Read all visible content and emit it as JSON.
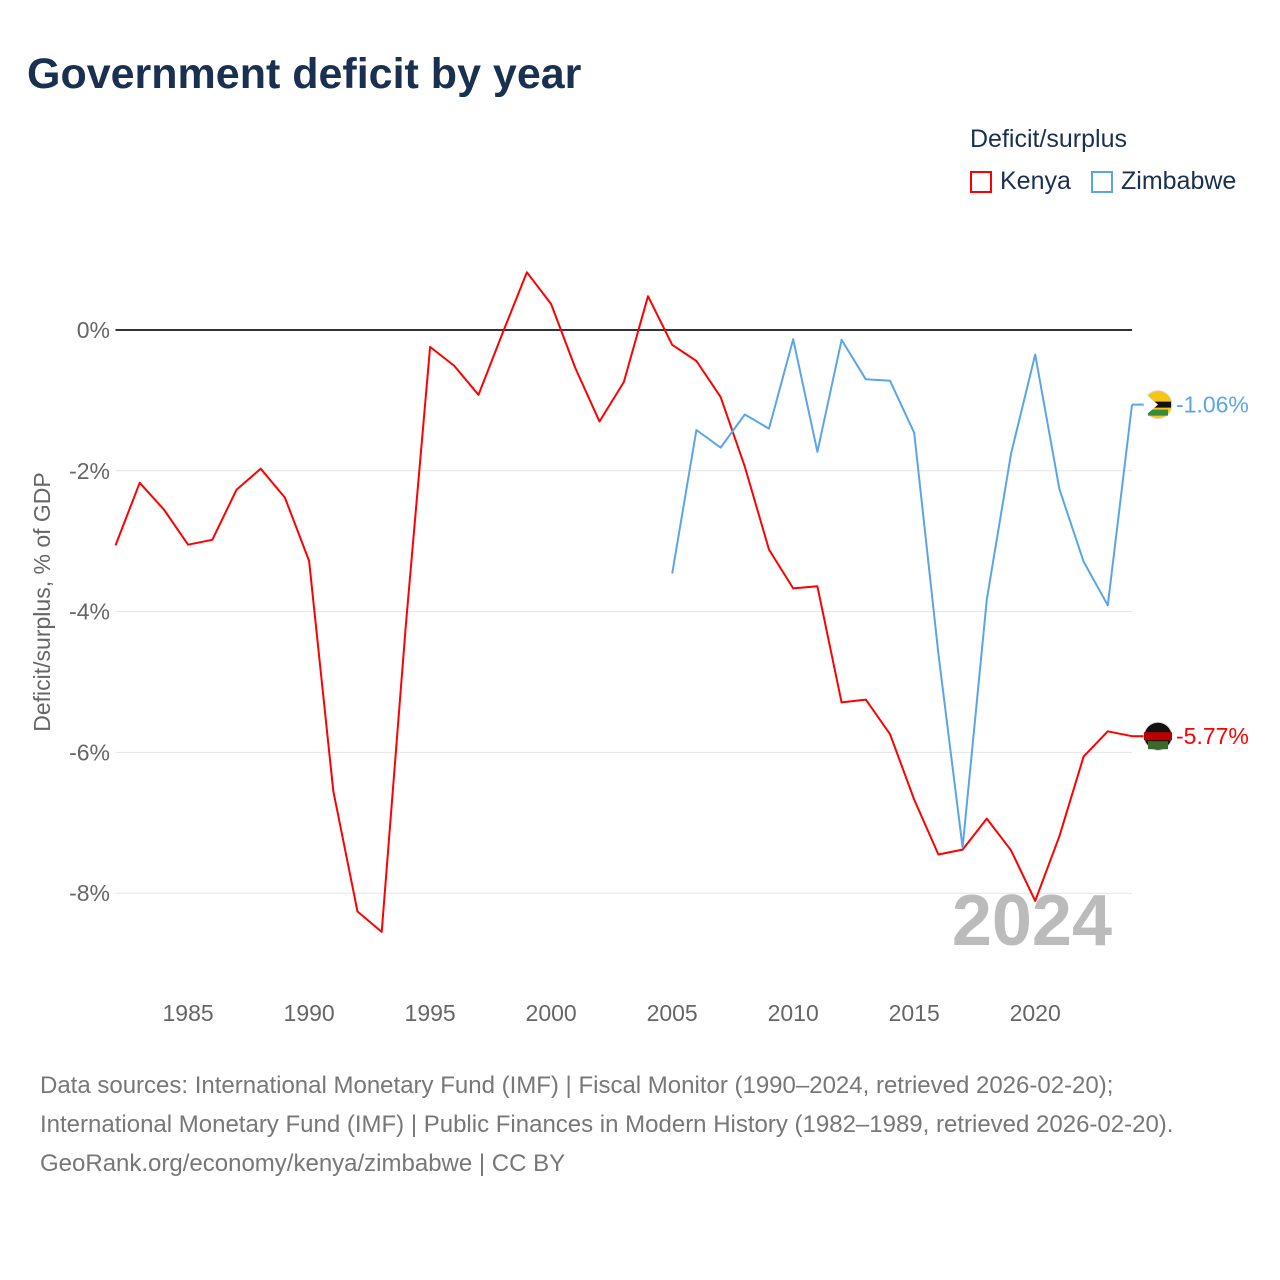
{
  "title": "Government deficit by year",
  "legend": {
    "title": "Deficit/surplus",
    "items": [
      {
        "name": "Kenya",
        "color": "#ff0000"
      },
      {
        "name": "Zimbabwe",
        "color": "#5aa5e8"
      }
    ]
  },
  "footer": {
    "sources": "Data sources: International Monetary Fund (IMF) | Fiscal Monitor (1990–2024, retrieved 2026-02-20); International Monetary Fund (IMF) | Public Finances in Modern History (1982–1989, retrieved 2026-02-20).",
    "credit": "GeoRank.org/economy/kenya/zimbabwe | CC BY"
  },
  "chart_data": {
    "type": "line",
    "title": "Government deficit by year",
    "ylabel": "Deficit/surplus, % of GDP",
    "xlabel": "",
    "xlim": [
      1982,
      2024
    ],
    "ylim": [
      -9,
      1
    ],
    "yticks": [
      0,
      -2,
      -4,
      -6,
      -8
    ],
    "ytick_labels": [
      "0%",
      "-2%",
      "-4%",
      "-6%",
      "-8%"
    ],
    "xticks": [
      1985,
      1990,
      1995,
      2000,
      2005,
      2010,
      2015,
      2020
    ],
    "xtick_labels": [
      "1985",
      "1990",
      "1995",
      "2000",
      "2005",
      "2010",
      "2015",
      "2020"
    ],
    "year_annotation": "2024",
    "grid": true,
    "legend_position": "top-right",
    "series": [
      {
        "name": "Kenya",
        "color": "#ff0000",
        "end_label": "-5.77%",
        "x": [
          1982,
          1983,
          1984,
          1985,
          1986,
          1987,
          1988,
          1989,
          1990,
          1991,
          1992,
          1993,
          1994,
          1995,
          1996,
          1997,
          1998,
          1999,
          2000,
          2001,
          2002,
          2003,
          2004,
          2005,
          2006,
          2007,
          2008,
          2009,
          2010,
          2011,
          2012,
          2013,
          2014,
          2015,
          2016,
          2017,
          2018,
          2019,
          2020,
          2021,
          2022,
          2023,
          2024
        ],
        "values": [
          -3.06,
          -2.17,
          -2.55,
          -3.05,
          -2.98,
          -2.27,
          -1.97,
          -2.38,
          -3.28,
          -6.55,
          -8.26,
          -8.55,
          -4.18,
          -0.24,
          -0.51,
          -0.92,
          -0.04,
          0.82,
          0.37,
          -0.54,
          -1.3,
          -0.74,
          0.48,
          -0.21,
          -0.44,
          -0.95,
          -1.94,
          -3.12,
          -3.67,
          -3.64,
          -5.29,
          -5.25,
          -5.74,
          -6.67,
          -7.45,
          -7.38,
          -6.94,
          -7.39,
          -8.11,
          -7.19,
          -6.06,
          -5.7,
          -5.77
        ]
      },
      {
        "name": "Zimbabwe",
        "color": "#5aa5e8",
        "end_label": "-1.06%",
        "x": [
          2005,
          2006,
          2007,
          2008,
          2009,
          2010,
          2011,
          2012,
          2013,
          2014,
          2015,
          2016,
          2017,
          2018,
          2019,
          2020,
          2021,
          2022,
          2023,
          2024
        ],
        "values": [
          -3.46,
          -1.42,
          -1.67,
          -1.2,
          -1.4,
          -0.13,
          -1.73,
          -0.14,
          -0.7,
          -0.72,
          -1.46,
          -4.6,
          -7.35,
          -3.83,
          -1.76,
          -0.35,
          -2.26,
          -3.29,
          -3.91,
          -1.06
        ]
      }
    ]
  }
}
